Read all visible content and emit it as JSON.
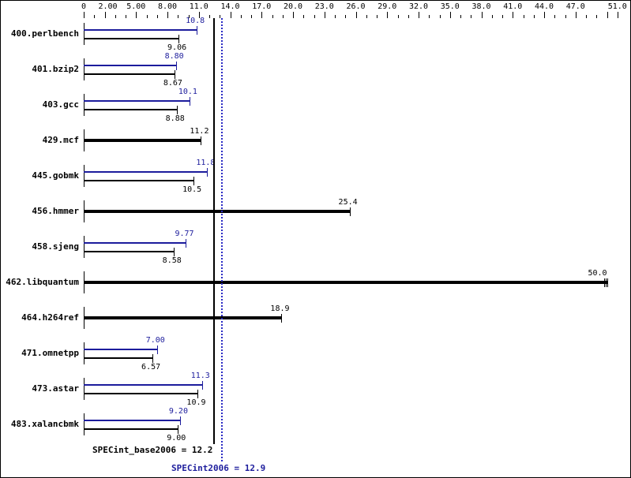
{
  "chart_data": {
    "type": "bar",
    "orientation": "horizontal",
    "title": "",
    "xlabel": "",
    "ylabel": "",
    "xlim": [
      0,
      51.0
    ],
    "axis_ticks": [
      "0",
      "2.00",
      "5.00",
      "8.00",
      "11.0",
      "14.0",
      "17.0",
      "20.0",
      "23.0",
      "26.0",
      "29.0",
      "32.0",
      "35.0",
      "38.0",
      "41.0",
      "44.0",
      "47.0",
      "51.0"
    ],
    "categories": [
      "400.perlbench",
      "401.bzip2",
      "403.gcc",
      "429.mcf",
      "445.gobmk",
      "456.hmmer",
      "458.sjeng",
      "462.libquantum",
      "464.h264ref",
      "471.omnetpp",
      "473.astar",
      "483.xalancbmk"
    ],
    "series": [
      {
        "name": "SPECint2006 (peak)",
        "color": "#1c1c9c",
        "values": [
          10.8,
          8.8,
          10.1,
          null,
          11.8,
          null,
          9.77,
          null,
          null,
          7.0,
          11.3,
          9.2
        ],
        "labels": [
          "10.8",
          "8.80",
          "10.1",
          null,
          "11.8",
          null,
          "9.77",
          null,
          null,
          "7.00",
          "11.3",
          "9.20"
        ]
      },
      {
        "name": "SPECint_base2006 (base)",
        "color": "#000000",
        "values": [
          9.06,
          8.67,
          8.88,
          11.2,
          10.5,
          25.4,
          8.58,
          50.0,
          18.9,
          6.57,
          10.9,
          9.0
        ],
        "labels": [
          "9.06",
          "8.67",
          "8.88",
          "11.2",
          "10.5",
          "25.4",
          "8.58",
          "50.0",
          "18.9",
          "6.57",
          "10.9",
          "9.00"
        ]
      }
    ],
    "reference_lines": [
      {
        "name": "SPECint_base2006",
        "value": 12.2,
        "label": "SPECint_base2006 = 12.2",
        "style": "solid",
        "color": "#000000"
      },
      {
        "name": "SPECint2006",
        "value": 12.9,
        "label": "SPECint2006 = 12.9",
        "style": "dotted",
        "color": "#1c1c9c"
      }
    ],
    "grid": false,
    "legend": "none"
  },
  "summary": {
    "base": "SPECint_base2006 = 12.2",
    "peak": "SPECint2006 = 12.9"
  }
}
